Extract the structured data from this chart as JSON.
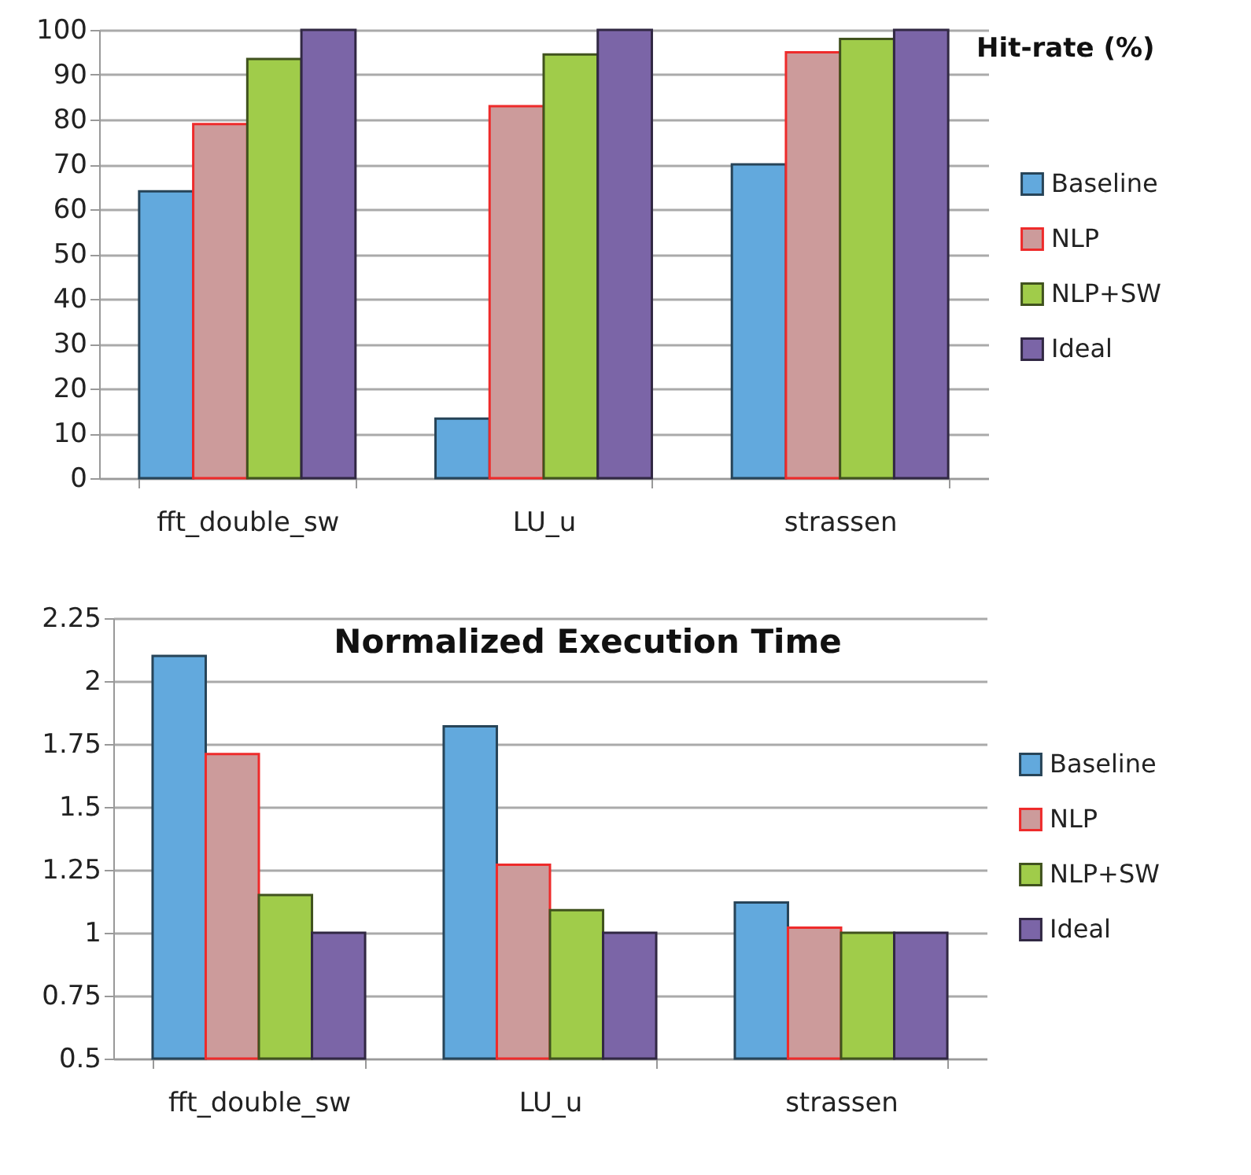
{
  "chart_data": [
    {
      "type": "bar",
      "title": "Hit-rate  (%)",
      "categories": [
        "fft_double_sw",
        "LU_u",
        "strassen"
      ],
      "series": [
        {
          "name": "Baseline",
          "color": "#62a9dd",
          "values": [
            64,
            13.3,
            70
          ]
        },
        {
          "name": "NLP",
          "color": "#cc9b9b",
          "values": [
            79,
            83,
            95
          ]
        },
        {
          "name": "NLP+SW",
          "color": "#a0cc4a",
          "values": [
            93.5,
            94.5,
            98
          ]
        },
        {
          "name": "Ideal",
          "color": "#7b65a7",
          "values": [
            100,
            100,
            100
          ]
        }
      ],
      "ylim": [
        0,
        100
      ],
      "yticks": [
        0,
        10,
        20,
        30,
        40,
        50,
        60,
        70,
        80,
        90,
        100
      ],
      "grid": "y",
      "legend": "right"
    },
    {
      "type": "bar",
      "title": "Normalized Execution Time",
      "categories": [
        "fft_double_sw",
        "LU_u",
        "strassen"
      ],
      "series": [
        {
          "name": "Baseline",
          "color": "#62a9dd",
          "values": [
            2.1,
            1.82,
            1.12
          ]
        },
        {
          "name": "NLP",
          "color": "#cc9b9b",
          "values": [
            1.71,
            1.27,
            1.02
          ]
        },
        {
          "name": "NLP+SW",
          "color": "#a0cc4a",
          "values": [
            1.15,
            1.09,
            1.0
          ]
        },
        {
          "name": "Ideal",
          "color": "#7b65a7",
          "values": [
            1.0,
            1.0,
            1.0
          ]
        }
      ],
      "ylim": [
        0.5,
        2.25
      ],
      "yticks": [
        0.5,
        0.75,
        1,
        1.25,
        1.5,
        1.75,
        2,
        2.25
      ],
      "grid": "y",
      "legend": "right"
    }
  ]
}
